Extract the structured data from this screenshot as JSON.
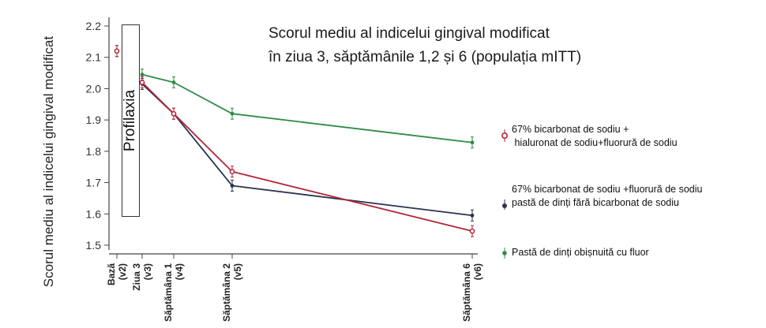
{
  "chart_data": {
    "type": "line",
    "title_lines": [
      "Scorul mediu al indicelui gingival modificat",
      "în ziua 3, săptămânile 1,2 și 6 (populația mITT)"
    ],
    "ylabel": "Scorul mediu al indicelui gingival modificat",
    "ylim": [
      1.5,
      2.2
    ],
    "yticks": [
      "1.5",
      "1.6",
      "1.7",
      "1.8",
      "1.9",
      "2.0",
      "2.1",
      "2.2"
    ],
    "x_categories": [
      {
        "label": "Bază",
        "sub": "(v2)",
        "x": 0
      },
      {
        "label": "Ziua 3",
        "sub": "(v3)",
        "x": 3
      },
      {
        "label": "Săptămâna 1",
        "sub": "(v4)",
        "x": 7
      },
      {
        "label": "Săptămâna 2",
        "sub": "(v5)",
        "x": 14
      },
      {
        "label": "Săptămâna 6",
        "sub": "(v6)",
        "x": 42
      }
    ],
    "xlim": [
      -1,
      43
    ],
    "annotation": "Profilaxia",
    "series": [
      {
        "name": "67% bicarbonat de sodiu + \n hialuronat de sodiu+fluorură de sodiu",
        "color": "#b0263a",
        "points": [
          [
            0,
            2.12
          ],
          [
            3,
            2.02
          ],
          [
            7,
            1.92
          ],
          [
            14,
            1.735
          ],
          [
            42,
            1.545
          ]
        ]
      },
      {
        "name": "67% bicarbonat de sodiu +fluorură de sodiu\npastă de dinți fără bicarbonat de sodiu",
        "color": "#2a3350",
        "points": [
          [
            0,
            2.12
          ],
          [
            3,
            2.015
          ],
          [
            7,
            1.92
          ],
          [
            14,
            1.69
          ],
          [
            42,
            1.595
          ]
        ]
      },
      {
        "name": "Pastă de dinți obișnuită cu fluor",
        "color": "#2e8b45",
        "points": [
          [
            3,
            2.045
          ],
          [
            7,
            2.02
          ],
          [
            14,
            1.92
          ],
          [
            42,
            1.828
          ]
        ]
      }
    ]
  }
}
